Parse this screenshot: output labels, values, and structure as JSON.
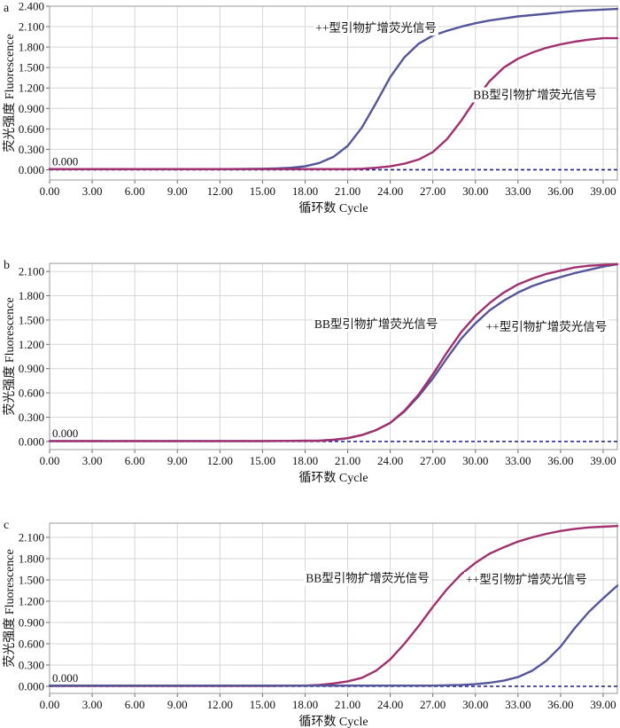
{
  "colors": {
    "plus_series": "#55559a",
    "bb_series": "#a0306e",
    "threshold": "#1e1e8a",
    "grid": "#d6d6d6",
    "frame": "#9a9a9a"
  },
  "chart_data": [
    {
      "panel_label": "a",
      "type": "line",
      "ylabel": "荧光强度 Fluorescence",
      "xlabel": "循环数 Cycle",
      "xlim": [
        0,
        40
      ],
      "ylim": [
        -0.15,
        2.4
      ],
      "xticks": [
        "0.00",
        "3.00",
        "6.00",
        "9.00",
        "12.00",
        "15.00",
        "18.00",
        "21.00",
        "24.00",
        "27.00",
        "30.00",
        "33.00",
        "36.00",
        "39.00"
      ],
      "yticks": [
        "0.000",
        "0.300",
        "0.600",
        "0.900",
        "1.200",
        "1.500",
        "1.800",
        "2.100",
        "2.400"
      ],
      "threshold_label": "0.000",
      "grid": true,
      "series": [
        {
          "key": "plus",
          "x": [
            0,
            3,
            6,
            9,
            12,
            15,
            16,
            17,
            18,
            19,
            20,
            21,
            22,
            23,
            24,
            25,
            26,
            27,
            28,
            29,
            30,
            31,
            32,
            33,
            34,
            35,
            36,
            37,
            38,
            39,
            40
          ],
          "y": [
            0.01,
            0.01,
            0.01,
            0.01,
            0.01,
            0.015,
            0.02,
            0.03,
            0.05,
            0.1,
            0.19,
            0.35,
            0.62,
            0.98,
            1.36,
            1.65,
            1.85,
            1.97,
            2.04,
            2.1,
            2.15,
            2.19,
            2.22,
            2.25,
            2.27,
            2.29,
            2.31,
            2.33,
            2.34,
            2.35,
            2.36
          ]
        },
        {
          "key": "bb",
          "x": [
            0,
            3,
            6,
            9,
            12,
            15,
            18,
            20,
            21,
            22,
            23,
            24,
            25,
            26,
            27,
            28,
            29,
            30,
            31,
            32,
            33,
            34,
            35,
            36,
            37,
            38,
            39,
            40
          ],
          "y": [
            0.01,
            0.01,
            0.01,
            0.01,
            0.01,
            0.01,
            0.01,
            0.01,
            0.01,
            0.015,
            0.03,
            0.05,
            0.09,
            0.15,
            0.26,
            0.45,
            0.72,
            1.03,
            1.3,
            1.5,
            1.63,
            1.72,
            1.79,
            1.84,
            1.88,
            1.91,
            1.93,
            1.93
          ]
        }
      ],
      "annotations": [
        {
          "for": "plus",
          "text": "++型引物扩增荧光信号",
          "at_x": 23.0,
          "at_y": 2.02
        },
        {
          "for": "bb",
          "text": "BB型引物扩增荧光信号",
          "at_x": 34.2,
          "at_y": 1.04
        }
      ]
    },
    {
      "panel_label": "b",
      "type": "line",
      "ylabel": "荧光强度 Fluorescence",
      "xlabel": "循环数 Cycle",
      "xlim": [
        0,
        40
      ],
      "ylim": [
        -0.1,
        2.2
      ],
      "xticks": [
        "0.00",
        "3.00",
        "6.00",
        "9.00",
        "12.00",
        "15.00",
        "18.00",
        "21.00",
        "24.00",
        "27.00",
        "30.00",
        "33.00",
        "36.00",
        "39.00"
      ],
      "yticks": [
        "0.000",
        "0.300",
        "0.600",
        "0.900",
        "1.200",
        "1.500",
        "1.800",
        "2.100"
      ],
      "threshold_label": "0.000",
      "grid": true,
      "series": [
        {
          "key": "plus",
          "x": [
            0,
            3,
            6,
            9,
            12,
            15,
            18,
            19,
            20,
            21,
            22,
            23,
            24,
            25,
            26,
            27,
            28,
            29,
            30,
            31,
            32,
            33,
            34,
            35,
            36,
            37,
            38,
            39,
            40
          ],
          "y": [
            0.005,
            0.005,
            0.005,
            0.005,
            0.005,
            0.005,
            0.008,
            0.01,
            0.02,
            0.04,
            0.08,
            0.14,
            0.23,
            0.37,
            0.56,
            0.78,
            1.03,
            1.27,
            1.46,
            1.62,
            1.74,
            1.84,
            1.92,
            1.98,
            2.03,
            2.08,
            2.12,
            2.16,
            2.19
          ]
        },
        {
          "key": "bb",
          "x": [
            0,
            3,
            6,
            9,
            12,
            15,
            18,
            19,
            20,
            21,
            22,
            23,
            24,
            25,
            26,
            27,
            28,
            29,
            30,
            31,
            32,
            33,
            34,
            35,
            36,
            37,
            38,
            39,
            40
          ],
          "y": [
            0.005,
            0.005,
            0.005,
            0.005,
            0.005,
            0.005,
            0.008,
            0.01,
            0.02,
            0.04,
            0.08,
            0.14,
            0.23,
            0.38,
            0.58,
            0.83,
            1.1,
            1.35,
            1.55,
            1.71,
            1.84,
            1.94,
            2.01,
            2.07,
            2.11,
            2.15,
            2.17,
            2.18,
            2.19
          ]
        }
      ],
      "annotations": [
        {
          "for": "bb",
          "text": "BB型引物扩增荧光信号",
          "at_x": 23.0,
          "at_y": 1.4
        },
        {
          "for": "plus",
          "text": "++型引物扩增荧光信号",
          "at_x": 35.0,
          "at_y": 1.37
        }
      ]
    },
    {
      "panel_label": "c",
      "type": "line",
      "ylabel": "荧光强度 Fluorescence",
      "xlabel": "循环数 Cycle",
      "xlim": [
        0,
        40
      ],
      "ylim": [
        -0.1,
        2.3
      ],
      "xticks": [
        "0.00",
        "3.00",
        "6.00",
        "9.00",
        "12.00",
        "15.00",
        "18.00",
        "21.00",
        "24.00",
        "27.00",
        "30.00",
        "33.00",
        "36.00",
        "39.00"
      ],
      "yticks": [
        "0.000",
        "0.300",
        "0.600",
        "0.900",
        "1.200",
        "1.500",
        "1.800",
        "2.100"
      ],
      "threshold_label": "0.000",
      "grid": true,
      "series": [
        {
          "key": "bb",
          "x": [
            0,
            3,
            6,
            9,
            12,
            15,
            18,
            19,
            20,
            21,
            22,
            23,
            24,
            25,
            26,
            27,
            28,
            29,
            30,
            31,
            32,
            33,
            34,
            35,
            36,
            37,
            38,
            39,
            40
          ],
          "y": [
            0.005,
            0.005,
            0.005,
            0.005,
            0.005,
            0.005,
            0.01,
            0.02,
            0.04,
            0.07,
            0.12,
            0.22,
            0.38,
            0.6,
            0.85,
            1.12,
            1.37,
            1.58,
            1.74,
            1.87,
            1.96,
            2.04,
            2.1,
            2.15,
            2.19,
            2.22,
            2.24,
            2.25,
            2.26
          ]
        },
        {
          "key": "plus",
          "x": [
            0,
            3,
            6,
            9,
            12,
            15,
            18,
            21,
            24,
            27,
            28,
            29,
            30,
            31,
            32,
            33,
            34,
            35,
            36,
            37,
            38,
            39,
            40
          ],
          "y": [
            0.01,
            0.01,
            0.01,
            0.01,
            0.01,
            0.01,
            0.01,
            0.01,
            0.01,
            0.01,
            0.015,
            0.02,
            0.03,
            0.05,
            0.08,
            0.13,
            0.22,
            0.36,
            0.56,
            0.82,
            1.05,
            1.24,
            1.42
          ]
        }
      ],
      "annotations": [
        {
          "for": "bb",
          "text": "BB型引物扩增荧光信号",
          "at_x": 22.4,
          "at_y": 1.47
        },
        {
          "for": "plus",
          "text": "++型引物扩增荧光信号",
          "at_x": 33.6,
          "at_y": 1.45
        }
      ]
    }
  ]
}
